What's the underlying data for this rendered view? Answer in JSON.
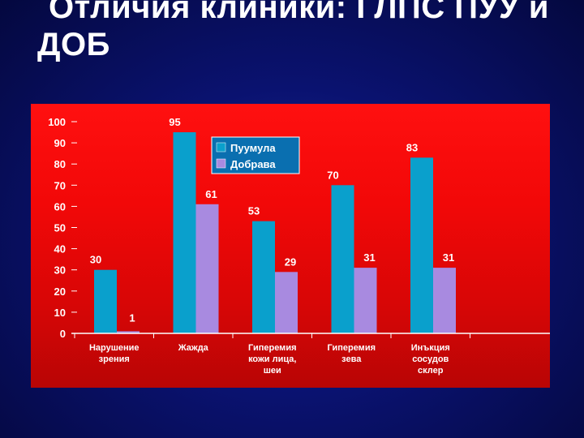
{
  "slide": {
    "title_line1": "Отличия клиники: ГЛПС ПУУ и",
    "title_line2": "ДОБ"
  },
  "colors": {
    "background": "#0a1270",
    "plot_area": "#ff1010",
    "series_1": "#0aa0cc",
    "series_2": "#a88ae0",
    "text": "#ffffff"
  },
  "chart_data": {
    "type": "bar",
    "categories": [
      [
        "Нарушение",
        "зрения"
      ],
      [
        "Жажда"
      ],
      [
        "Гиперемия",
        "кожи лица,",
        "шеи"
      ],
      [
        "Гиперемия",
        "зева"
      ],
      [
        "Инъкция",
        "сосудов",
        "склер"
      ]
    ],
    "series": [
      {
        "name": "Пуумула",
        "values": [
          30,
          95,
          53,
          70,
          83
        ]
      },
      {
        "name": "Добрава",
        "values": [
          1,
          61,
          29,
          31,
          31
        ]
      }
    ],
    "ylim": [
      0,
      100
    ],
    "yticks": [
      0,
      10,
      20,
      30,
      40,
      50,
      60,
      70,
      80,
      90,
      100
    ],
    "grid": false,
    "legend_position": "top-center",
    "data_labels": true,
    "title": "",
    "xlabel": "",
    "ylabel": ""
  }
}
